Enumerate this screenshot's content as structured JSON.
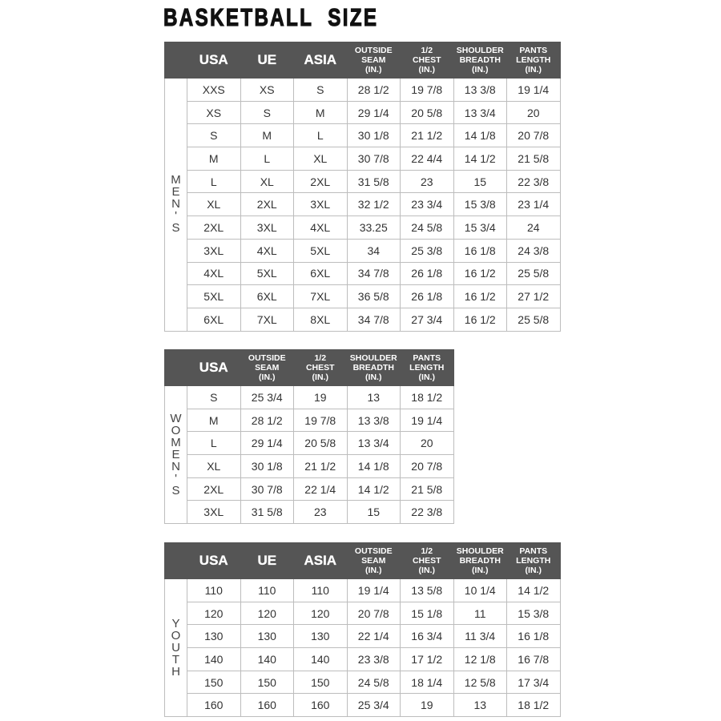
{
  "title": "BASKETBALL SIZE",
  "tables": [
    {
      "id": "mens",
      "side_label": "MEN'S",
      "headers": [
        "USA",
        "UE",
        "ASIA",
        "OUTSIDE\nSEAM\n(IN.)",
        "1/2\nCHEST\n(IN.)",
        "SHOULDER\nBREADTH\n(IN.)",
        "PANTS\nLENGTH\n(IN.)"
      ],
      "rows": [
        [
          "XXS",
          "XS",
          "S",
          "28 1/2",
          "19 7/8",
          "13 3/8",
          "19 1/4"
        ],
        [
          "XS",
          "S",
          "M",
          "29 1/4",
          "20 5/8",
          "13 3/4",
          "20"
        ],
        [
          "S",
          "M",
          "L",
          "30 1/8",
          "21 1/2",
          "14 1/8",
          "20 7/8"
        ],
        [
          "M",
          "L",
          "XL",
          "30 7/8",
          "22 4/4",
          "14 1/2",
          "21 5/8"
        ],
        [
          "L",
          "XL",
          "2XL",
          "31 5/8",
          "23",
          "15",
          "22 3/8"
        ],
        [
          "XL",
          "2XL",
          "3XL",
          "32 1/2",
          "23 3/4",
          "15 3/8",
          "23 1/4"
        ],
        [
          "2XL",
          "3XL",
          "4XL",
          "33.25",
          "24 5/8",
          "15 3/4",
          "24"
        ],
        [
          "3XL",
          "4XL",
          "5XL",
          "34",
          "25 3/8",
          "16 1/8",
          "24 3/8"
        ],
        [
          "4XL",
          "5XL",
          "6XL",
          "34 7/8",
          "26 1/8",
          "16 1/2",
          "25 5/8"
        ],
        [
          "5XL",
          "6XL",
          "7XL",
          "36 5/8",
          "26 1/8",
          "16 1/2",
          "27 1/2"
        ],
        [
          "6XL",
          "7XL",
          "8XL",
          "34 7/8",
          "27 3/4",
          "16 1/2",
          "25 5/8"
        ]
      ]
    },
    {
      "id": "womens",
      "side_label": "WOMEN'S",
      "headers": [
        "USA",
        "OUTSIDE\nSEAM\n(IN.)",
        "1/2\nCHEST\n(IN.)",
        "SHOULDER\nBREADTH\n(IN.)",
        "PANTS\nLENGTH\n(IN.)"
      ],
      "rows": [
        [
          "S",
          "25 3/4",
          "19",
          "13",
          "18 1/2"
        ],
        [
          "M",
          "28 1/2",
          "19 7/8",
          "13 3/8",
          "19 1/4"
        ],
        [
          "L",
          "29 1/4",
          "20 5/8",
          "13 3/4",
          "20"
        ],
        [
          "XL",
          "30 1/8",
          "21 1/2",
          "14 1/8",
          "20 7/8"
        ],
        [
          "2XL",
          "30 7/8",
          "22 1/4",
          "14 1/2",
          "21 5/8"
        ],
        [
          "3XL",
          "31 5/8",
          "23",
          "15",
          "22 3/8"
        ]
      ]
    },
    {
      "id": "youth",
      "side_label": "YOUTH",
      "headers": [
        "USA",
        "UE",
        "ASIA",
        "OUTSIDE\nSEAM\n(IN.)",
        "1/2\nCHEST\n(IN.)",
        "SHOULDER\nBREADTH\n(IN.)",
        "PANTS\nLENGTH\n(IN.)"
      ],
      "rows": [
        [
          "110",
          "110",
          "110",
          "19 1/4",
          "13 5/8",
          "10 1/4",
          "14 1/2"
        ],
        [
          "120",
          "120",
          "120",
          "20 7/8",
          "15 1/8",
          "11",
          "15 3/8"
        ],
        [
          "130",
          "130",
          "130",
          "22 1/4",
          "16 3/4",
          "11 3/4",
          "16 1/8"
        ],
        [
          "140",
          "140",
          "140",
          "23 3/8",
          "17 1/2",
          "12 1/8",
          "16 7/8"
        ],
        [
          "150",
          "150",
          "150",
          "24 5/8",
          "18 1/4",
          "12 5/8",
          "17 3/4"
        ],
        [
          "160",
          "160",
          "160",
          "25 3/4",
          "19",
          "13",
          "18 1/2"
        ]
      ]
    }
  ]
}
